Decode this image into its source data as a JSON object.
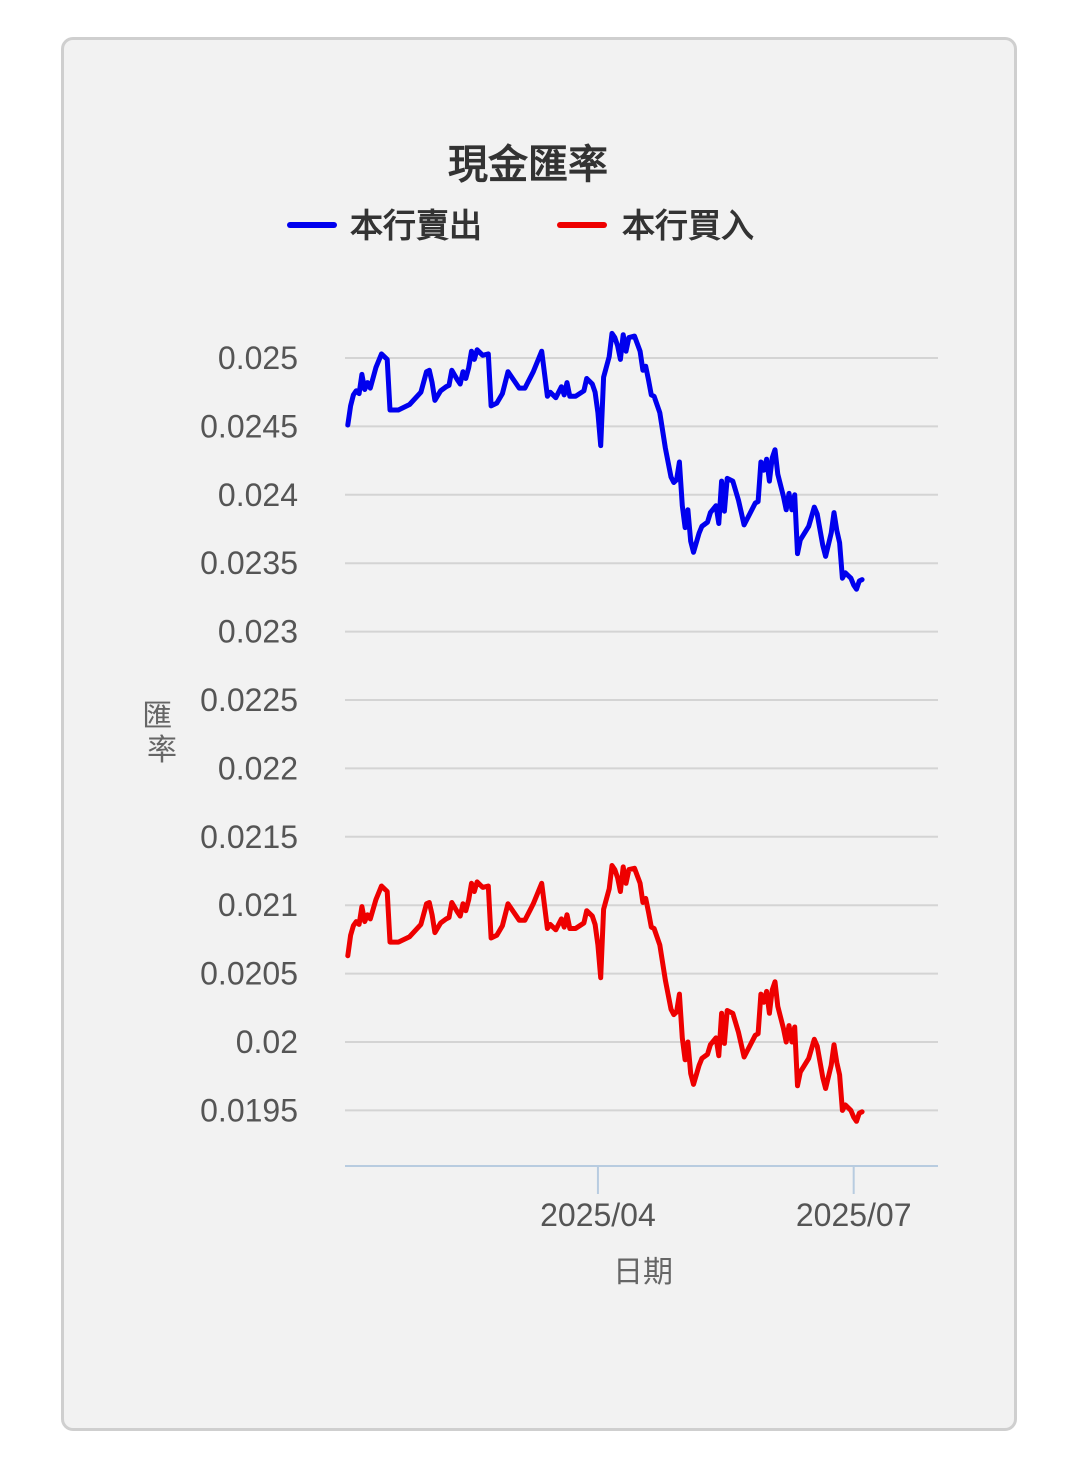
{
  "chart_data": {
    "type": "line",
    "title": "現金匯率",
    "xlabel": "日期",
    "ylabel": "匯率",
    "ylim": [
      0.0191,
      0.0254
    ],
    "yticks": [
      "0.025",
      "0.0245",
      "0.024",
      "0.0235",
      "0.023",
      "0.0225",
      "0.022",
      "0.0215",
      "0.021",
      "0.0205",
      "0.02",
      "0.0195"
    ],
    "xticks": [
      {
        "label": "2025/04",
        "date": "2025-04-01"
      },
      {
        "label": "2025/07",
        "date": "2025-07-01"
      }
    ],
    "xlim": [
      "2025-01-01",
      "2025-07-31"
    ],
    "legend_position": "top",
    "colors": {
      "sell": "#0000ee",
      "buy": "#ee0000"
    },
    "series": [
      {
        "name": "本行賣出",
        "color": "#0000ee",
        "points": [
          [
            "2025-01-02",
            0.02451
          ],
          [
            "2025-01-03",
            0.02465
          ],
          [
            "2025-01-04",
            0.02473
          ],
          [
            "2025-01-05",
            0.02476
          ],
          [
            "2025-01-06",
            0.02474
          ],
          [
            "2025-01-07",
            0.02488
          ],
          [
            "2025-01-08",
            0.02477
          ],
          [
            "2025-01-09",
            0.02482
          ],
          [
            "2025-01-10",
            0.02478
          ],
          [
            "2025-01-12",
            0.02493
          ],
          [
            "2025-01-14",
            0.02503
          ],
          [
            "2025-01-16",
            0.02499
          ],
          [
            "2025-01-17",
            0.02462
          ],
          [
            "2025-01-20",
            0.02462
          ],
          [
            "2025-01-24",
            0.02466
          ],
          [
            "2025-01-28",
            0.02475
          ],
          [
            "2025-01-30",
            0.0249
          ],
          [
            "2025-01-31",
            0.02491
          ],
          [
            "2025-02-01",
            0.02482
          ],
          [
            "2025-02-02",
            0.02469
          ],
          [
            "2025-02-04",
            0.02476
          ],
          [
            "2025-02-06",
            0.02479
          ],
          [
            "2025-02-07",
            0.0248
          ],
          [
            "2025-02-08",
            0.02491
          ],
          [
            "2025-02-10",
            0.02484
          ],
          [
            "2025-02-11",
            0.02481
          ],
          [
            "2025-02-12",
            0.0249
          ],
          [
            "2025-02-13",
            0.02485
          ],
          [
            "2025-02-14",
            0.02493
          ],
          [
            "2025-02-15",
            0.02505
          ],
          [
            "2025-02-16",
            0.02499
          ],
          [
            "2025-02-17",
            0.02506
          ],
          [
            "2025-02-19",
            0.02502
          ],
          [
            "2025-02-21",
            0.02503
          ],
          [
            "2025-02-22",
            0.02465
          ],
          [
            "2025-02-24",
            0.02467
          ],
          [
            "2025-02-26",
            0.02474
          ],
          [
            "2025-02-28",
            0.0249
          ],
          [
            "2025-03-02",
            0.02484
          ],
          [
            "2025-03-04",
            0.02478
          ],
          [
            "2025-03-06",
            0.02478
          ],
          [
            "2025-03-08",
            0.02486
          ],
          [
            "2025-03-09",
            0.0249
          ],
          [
            "2025-03-12",
            0.02505
          ],
          [
            "2025-03-14",
            0.02472
          ],
          [
            "2025-03-15",
            0.02475
          ],
          [
            "2025-03-17",
            0.02471
          ],
          [
            "2025-03-19",
            0.02479
          ],
          [
            "2025-03-20",
            0.02473
          ],
          [
            "2025-03-21",
            0.02482
          ],
          [
            "2025-03-22",
            0.02472
          ],
          [
            "2025-03-24",
            0.02472
          ],
          [
            "2025-03-27",
            0.02476
          ],
          [
            "2025-03-28",
            0.02485
          ],
          [
            "2025-03-30",
            0.02481
          ],
          [
            "2025-03-31",
            0.02475
          ],
          [
            "2025-04-01",
            0.0246
          ],
          [
            "2025-04-02",
            0.02436
          ],
          [
            "2025-04-03",
            0.02486
          ],
          [
            "2025-04-05",
            0.02501
          ],
          [
            "2025-04-06",
            0.02518
          ],
          [
            "2025-04-07",
            0.02515
          ],
          [
            "2025-04-08",
            0.02509
          ],
          [
            "2025-04-09",
            0.02499
          ],
          [
            "2025-04-10",
            0.02517
          ],
          [
            "2025-04-11",
            0.02505
          ],
          [
            "2025-04-12",
            0.02515
          ],
          [
            "2025-04-14",
            0.02516
          ],
          [
            "2025-04-16",
            0.02505
          ],
          [
            "2025-04-17",
            0.02491
          ],
          [
            "2025-04-18",
            0.02494
          ],
          [
            "2025-04-19",
            0.02484
          ],
          [
            "2025-04-20",
            0.02473
          ],
          [
            "2025-04-21",
            0.02472
          ],
          [
            "2025-04-23",
            0.0246
          ],
          [
            "2025-04-25",
            0.02434
          ],
          [
            "2025-04-27",
            0.02413
          ],
          [
            "2025-04-28",
            0.02409
          ],
          [
            "2025-04-29",
            0.02411
          ],
          [
            "2025-04-30",
            0.02424
          ],
          [
            "2025-05-01",
            0.02392
          ],
          [
            "2025-05-02",
            0.02376
          ],
          [
            "2025-05-03",
            0.02389
          ],
          [
            "2025-05-04",
            0.02366
          ],
          [
            "2025-05-05",
            0.02358
          ],
          [
            "2025-05-07",
            0.02372
          ],
          [
            "2025-05-08",
            0.02377
          ],
          [
            "2025-05-10",
            0.0238
          ],
          [
            "2025-05-11",
            0.02387
          ],
          [
            "2025-05-13",
            0.02392
          ],
          [
            "2025-05-14",
            0.02379
          ],
          [
            "2025-05-15",
            0.0241
          ],
          [
            "2025-05-16",
            0.02388
          ],
          [
            "2025-05-17",
            0.02412
          ],
          [
            "2025-05-19",
            0.0241
          ],
          [
            "2025-05-21",
            0.02396
          ],
          [
            "2025-05-22",
            0.02387
          ],
          [
            "2025-05-23",
            0.02378
          ],
          [
            "2025-05-25",
            0.02386
          ],
          [
            "2025-05-27",
            0.02394
          ],
          [
            "2025-05-28",
            0.02395
          ],
          [
            "2025-05-29",
            0.02424
          ],
          [
            "2025-05-30",
            0.02418
          ],
          [
            "2025-05-31",
            0.02426
          ],
          [
            "2025-06-01",
            0.0241
          ],
          [
            "2025-06-02",
            0.02427
          ],
          [
            "2025-06-03",
            0.02433
          ],
          [
            "2025-06-04",
            0.02415
          ],
          [
            "2025-06-06",
            0.02399
          ],
          [
            "2025-06-07",
            0.02389
          ],
          [
            "2025-06-08",
            0.02401
          ],
          [
            "2025-06-09",
            0.02389
          ],
          [
            "2025-06-10",
            0.024
          ],
          [
            "2025-06-11",
            0.02357
          ],
          [
            "2025-06-12",
            0.02367
          ],
          [
            "2025-06-15",
            0.02377
          ],
          [
            "2025-06-17",
            0.02391
          ],
          [
            "2025-06-18",
            0.02386
          ],
          [
            "2025-06-20",
            0.02363
          ],
          [
            "2025-06-21",
            0.02355
          ],
          [
            "2025-06-23",
            0.02372
          ],
          [
            "2025-06-24",
            0.02387
          ],
          [
            "2025-06-25",
            0.02374
          ],
          [
            "2025-06-26",
            0.02365
          ],
          [
            "2025-06-27",
            0.02339
          ],
          [
            "2025-06-28",
            0.02343
          ],
          [
            "2025-06-29",
            0.02341
          ],
          [
            "2025-06-30",
            0.02339
          ],
          [
            "2025-07-01",
            0.02334
          ],
          [
            "2025-07-02",
            0.02331
          ],
          [
            "2025-07-03",
            0.02337
          ],
          [
            "2025-07-04",
            0.02338
          ]
        ]
      },
      {
        "name": "本行買入",
        "color": "#ee0000",
        "points": [
          [
            "2025-01-02",
            0.02063
          ],
          [
            "2025-01-03",
            0.02078
          ],
          [
            "2025-01-04",
            0.02085
          ],
          [
            "2025-01-05",
            0.02088
          ],
          [
            "2025-01-06",
            0.02086
          ],
          [
            "2025-01-07",
            0.02099
          ],
          [
            "2025-01-08",
            0.02088
          ],
          [
            "2025-01-09",
            0.02093
          ],
          [
            "2025-01-10",
            0.0209
          ],
          [
            "2025-01-12",
            0.02104
          ],
          [
            "2025-01-14",
            0.02114
          ],
          [
            "2025-01-16",
            0.0211
          ],
          [
            "2025-01-17",
            0.02073
          ],
          [
            "2025-01-20",
            0.02073
          ],
          [
            "2025-01-24",
            0.02077
          ],
          [
            "2025-01-28",
            0.02086
          ],
          [
            "2025-01-30",
            0.02101
          ],
          [
            "2025-01-31",
            0.02102
          ],
          [
            "2025-02-01",
            0.02093
          ],
          [
            "2025-02-02",
            0.0208
          ],
          [
            "2025-02-04",
            0.02087
          ],
          [
            "2025-02-06",
            0.0209
          ],
          [
            "2025-02-07",
            0.02091
          ],
          [
            "2025-02-08",
            0.02102
          ],
          [
            "2025-02-10",
            0.02095
          ],
          [
            "2025-02-11",
            0.02092
          ],
          [
            "2025-02-12",
            0.02101
          ],
          [
            "2025-02-13",
            0.02096
          ],
          [
            "2025-02-14",
            0.02104
          ],
          [
            "2025-02-15",
            0.02116
          ],
          [
            "2025-02-16",
            0.0211
          ],
          [
            "2025-02-17",
            0.02117
          ],
          [
            "2025-02-19",
            0.02113
          ],
          [
            "2025-02-21",
            0.02114
          ],
          [
            "2025-02-22",
            0.02076
          ],
          [
            "2025-02-24",
            0.02078
          ],
          [
            "2025-02-26",
            0.02085
          ],
          [
            "2025-02-28",
            0.02101
          ],
          [
            "2025-03-02",
            0.02095
          ],
          [
            "2025-03-04",
            0.02089
          ],
          [
            "2025-03-06",
            0.02089
          ],
          [
            "2025-03-08",
            0.02097
          ],
          [
            "2025-03-09",
            0.02101
          ],
          [
            "2025-03-12",
            0.02116
          ],
          [
            "2025-03-14",
            0.02083
          ],
          [
            "2025-03-15",
            0.02086
          ],
          [
            "2025-03-17",
            0.02082
          ],
          [
            "2025-03-19",
            0.0209
          ],
          [
            "2025-03-20",
            0.02084
          ],
          [
            "2025-03-21",
            0.02093
          ],
          [
            "2025-03-22",
            0.02083
          ],
          [
            "2025-03-24",
            0.02083
          ],
          [
            "2025-03-27",
            0.02087
          ],
          [
            "2025-03-28",
            0.02096
          ],
          [
            "2025-03-30",
            0.02092
          ],
          [
            "2025-03-31",
            0.02086
          ],
          [
            "2025-04-01",
            0.02071
          ],
          [
            "2025-04-02",
            0.02047
          ],
          [
            "2025-04-03",
            0.02097
          ],
          [
            "2025-04-05",
            0.02112
          ],
          [
            "2025-04-06",
            0.02129
          ],
          [
            "2025-04-07",
            0.02126
          ],
          [
            "2025-04-08",
            0.0212
          ],
          [
            "2025-04-09",
            0.0211
          ],
          [
            "2025-04-10",
            0.02128
          ],
          [
            "2025-04-11",
            0.02116
          ],
          [
            "2025-04-12",
            0.02126
          ],
          [
            "2025-04-14",
            0.02127
          ],
          [
            "2025-04-16",
            0.02116
          ],
          [
            "2025-04-17",
            0.02102
          ],
          [
            "2025-04-18",
            0.02105
          ],
          [
            "2025-04-19",
            0.02095
          ],
          [
            "2025-04-20",
            0.02084
          ],
          [
            "2025-04-21",
            0.02083
          ],
          [
            "2025-04-23",
            0.02071
          ],
          [
            "2025-04-25",
            0.02045
          ],
          [
            "2025-04-27",
            0.02024
          ],
          [
            "2025-04-28",
            0.0202
          ],
          [
            "2025-04-29",
            0.02022
          ],
          [
            "2025-04-30",
            0.02035
          ],
          [
            "2025-05-01",
            0.02003
          ],
          [
            "2025-05-02",
            0.01987
          ],
          [
            "2025-05-03",
            0.02
          ],
          [
            "2025-05-04",
            0.01977
          ],
          [
            "2025-05-05",
            0.01969
          ],
          [
            "2025-05-07",
            0.01983
          ],
          [
            "2025-05-08",
            0.01988
          ],
          [
            "2025-05-10",
            0.01991
          ],
          [
            "2025-05-11",
            0.01998
          ],
          [
            "2025-05-13",
            0.02003
          ],
          [
            "2025-05-14",
            0.0199
          ],
          [
            "2025-05-15",
            0.02021
          ],
          [
            "2025-05-16",
            0.01999
          ],
          [
            "2025-05-17",
            0.02023
          ],
          [
            "2025-05-19",
            0.02021
          ],
          [
            "2025-05-21",
            0.02007
          ],
          [
            "2025-05-22",
            0.01998
          ],
          [
            "2025-05-23",
            0.01989
          ],
          [
            "2025-05-25",
            0.01997
          ],
          [
            "2025-05-27",
            0.02005
          ],
          [
            "2025-05-28",
            0.02006
          ],
          [
            "2025-05-29",
            0.02035
          ],
          [
            "2025-05-30",
            0.02029
          ],
          [
            "2025-05-31",
            0.02037
          ],
          [
            "2025-06-01",
            0.02021
          ],
          [
            "2025-06-02",
            0.02038
          ],
          [
            "2025-06-03",
            0.02044
          ],
          [
            "2025-06-04",
            0.02026
          ],
          [
            "2025-06-06",
            0.0201
          ],
          [
            "2025-06-07",
            0.02
          ],
          [
            "2025-06-08",
            0.02012
          ],
          [
            "2025-06-09",
            0.02
          ],
          [
            "2025-06-10",
            0.02011
          ],
          [
            "2025-06-11",
            0.01968
          ],
          [
            "2025-06-12",
            0.01978
          ],
          [
            "2025-06-15",
            0.01988
          ],
          [
            "2025-06-17",
            0.02002
          ],
          [
            "2025-06-18",
            0.01997
          ],
          [
            "2025-06-20",
            0.01974
          ],
          [
            "2025-06-21",
            0.01966
          ],
          [
            "2025-06-23",
            0.01983
          ],
          [
            "2025-06-24",
            0.01998
          ],
          [
            "2025-06-25",
            0.01985
          ],
          [
            "2025-06-26",
            0.01976
          ],
          [
            "2025-06-27",
            0.0195
          ],
          [
            "2025-06-28",
            0.01954
          ],
          [
            "2025-06-29",
            0.01952
          ],
          [
            "2025-06-30",
            0.0195
          ],
          [
            "2025-07-01",
            0.01945
          ],
          [
            "2025-07-02",
            0.01942
          ],
          [
            "2025-07-03",
            0.01948
          ],
          [
            "2025-07-04",
            0.01949
          ]
        ]
      }
    ]
  }
}
